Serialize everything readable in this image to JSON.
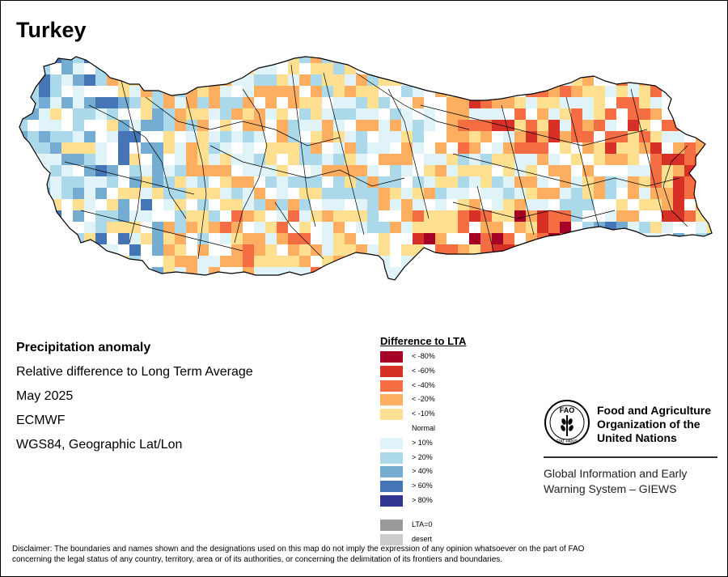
{
  "map": {
    "title": "Turkey",
    "country_name": "Turkey"
  },
  "info": {
    "lines": [
      "Precipitation anomaly",
      "Relative difference to Long Term Average",
      "May 2025",
      "ECMWF",
      "WGS84, Geographic Lat/Lon"
    ]
  },
  "legend": {
    "title": "Difference to LTA",
    "items": [
      {
        "label": "< -80%",
        "color": "#a50026"
      },
      {
        "label": "< -60%",
        "color": "#d73027"
      },
      {
        "label": "< -40%",
        "color": "#f46d43"
      },
      {
        "label": "< -20%",
        "color": "#fdae61"
      },
      {
        "label": "< -10%",
        "color": "#fee090"
      },
      {
        "label": "Normal",
        "color": "#ffffff"
      },
      {
        "label": "> 10%",
        "color": "#e0f3f8"
      },
      {
        "label": "> 20%",
        "color": "#abd9e9"
      },
      {
        "label": "> 40%",
        "color": "#74add1"
      },
      {
        "label": "> 60%",
        "color": "#4575b4"
      },
      {
        "label": "> 80%",
        "color": "#313695"
      }
    ],
    "extra": [
      {
        "label": "LTA=0",
        "color": "#999999"
      },
      {
        "label": "desert",
        "color": "#cccccc"
      }
    ]
  },
  "fao": {
    "logo_text": "FAO",
    "logo_motto": "FIAT PANIS",
    "name_lines": [
      "Food and Agriculture",
      "Organization of the",
      "United Nations"
    ],
    "giews_lines": [
      "Global Information and Early",
      "Warning System – GIEWS"
    ]
  },
  "disclaimer": {
    "lines": [
      "Disclaimer: The boundaries and names shown and the designations used on this map do not imply the expression of any opinion whatsoever on the part of FAO",
      "concerning the legal status of any country, territory, area or of its authorities, or concerning the delimitation of its frontiers and boundaries."
    ]
  }
}
